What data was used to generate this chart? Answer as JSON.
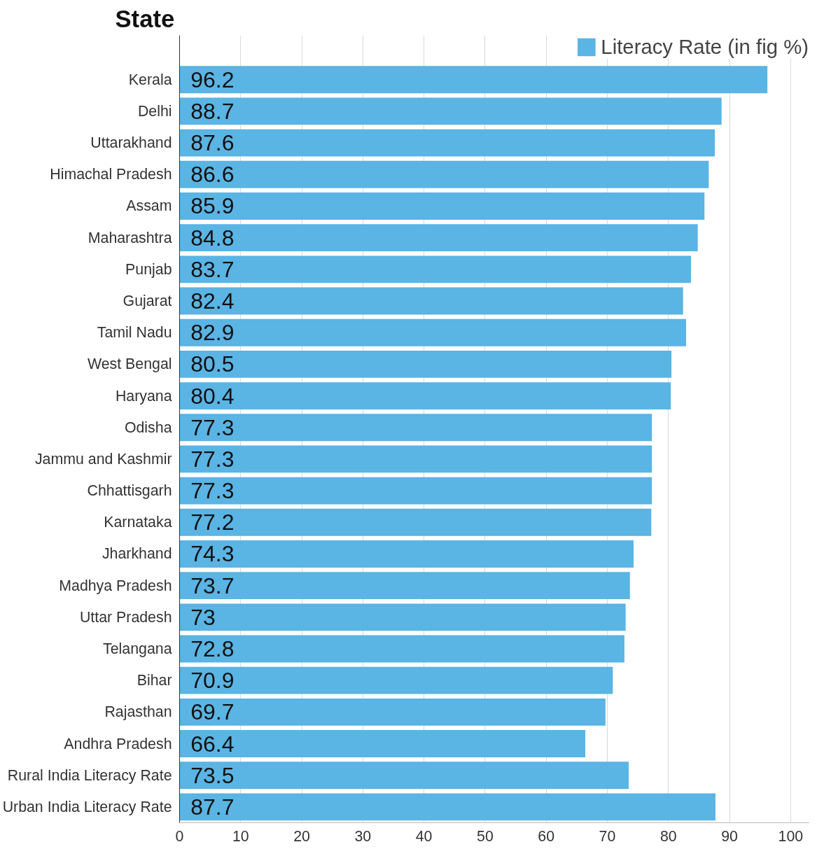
{
  "chart_data": {
    "type": "bar",
    "orientation": "horizontal",
    "ylabel": "State",
    "categories": [
      "Kerala",
      "Delhi",
      "Uttarakhand",
      "Himachal Pradesh",
      "Assam",
      "Maharashtra",
      "Punjab",
      "Gujarat",
      "Tamil Nadu",
      "West Bengal",
      "Haryana",
      "Odisha",
      "Jammu and Kashmir",
      "Chhattisgarh",
      "Karnataka",
      "Jharkhand",
      "Madhya Pradesh",
      "Uttar Pradesh",
      "Telangana",
      "Bihar",
      "Rajasthan",
      "Andhra Pradesh",
      "Rural India Literacy Rate",
      "Urban India Literacy Rate"
    ],
    "series": [
      {
        "name": "Literacy Rate (in fig %)",
        "color": "#5ab4e4",
        "values": [
          96.2,
          88.7,
          87.6,
          86.6,
          85.9,
          84.8,
          83.7,
          82.4,
          82.9,
          80.5,
          80.4,
          77.3,
          77.3,
          77.3,
          77.2,
          74.3,
          73.7,
          73,
          72.8,
          70.9,
          69.7,
          66.4,
          73.5,
          87.7
        ]
      }
    ],
    "xlim": [
      0,
      103
    ],
    "xticks": [
      0,
      10,
      20,
      30,
      40,
      50,
      60,
      70,
      80,
      90,
      100
    ],
    "grid": "x",
    "legend": "top right",
    "data_labels": true
  }
}
